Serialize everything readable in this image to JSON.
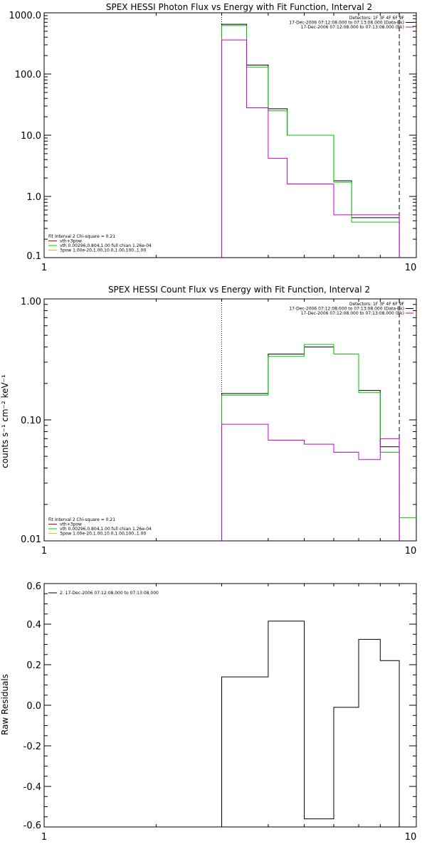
{
  "chart_data": [
    {
      "type": "line",
      "id": "photon",
      "title": "SPEX HESSI Photon Flux vs Energy with Fit Function, Interval 2",
      "xlabel": "",
      "ylabel": "",
      "xscale": "log",
      "yscale": "log",
      "xlim": [
        1,
        10
      ],
      "ylim": [
        0.1,
        1000
      ],
      "xticklabels": [
        "1",
        "10"
      ],
      "yticklabels": [
        "0.1",
        "1.0",
        "10.0",
        "100.0",
        "1000.0"
      ],
      "vlines": [
        {
          "x": 3.0,
          "style": "dotted"
        },
        {
          "x": 9.0,
          "style": "dashed"
        }
      ],
      "edges": [
        3.0,
        3.5,
        4.0,
        4.5,
        5.0,
        6.0,
        6.7,
        7.5,
        8.0,
        9.0
      ],
      "series": [
        {
          "color": "#000000",
          "values": [
            650,
            140,
            27,
            10,
            10,
            1.8,
            0.45,
            0.45,
            0.45
          ]
        },
        {
          "color": "#00cc00",
          "values": [
            620,
            130,
            25,
            10,
            10,
            1.7,
            0.38,
            0.38,
            0.38
          ]
        },
        {
          "color": "#cc00cc",
          "values": [
            360,
            28,
            4.2,
            1.6,
            1.6,
            0.5,
            0.5,
            0.5,
            0.5
          ]
        }
      ],
      "legend_right": {
        "placement": "top-right",
        "lines": [
          {
            "text": "Detectors: 1F 3F 4F 6F 9F",
            "color": ""
          },
          {
            "text": "17-Dec-2006 07:12:08.000 to 07:13:08.000 (Data-Bk)",
            "color": "#000000"
          },
          {
            "text": "17-Dec-2006 07:12:08.000 to 07:13:08.000 (Bk)",
            "color": "#cc00cc"
          }
        ]
      },
      "legend_left": {
        "placement": "bottom-left",
        "lines": [
          {
            "text": "Fit Interval 2   Chi-square = 0.21",
            "color": ""
          },
          {
            "text": "vth+3pow",
            "color": "#cc0000"
          },
          {
            "text": "vth 0.00296,0.804,1.00  full chian 1.26e-04",
            "color": "#00cc00"
          },
          {
            "text": "3pow 1.00e-20,1.00,10.0,1.00,100.,1.00",
            "color": "#cccc00"
          }
        ]
      }
    },
    {
      "type": "line",
      "id": "count",
      "title": "SPEX HESSI Count Flux vs Energy with Fit Function, Interval 2",
      "xlabel": "",
      "ylabel": "counts s⁻¹ cm⁻² keV⁻¹",
      "xscale": "log",
      "yscale": "log",
      "xlim": [
        1,
        10
      ],
      "ylim": [
        0.01,
        1.0
      ],
      "xticklabels": [
        "1",
        "10"
      ],
      "yticklabels": [
        "0.01",
        "0.10",
        "1.00"
      ],
      "vlines": [
        {
          "x": 3.0,
          "style": "dotted"
        },
        {
          "x": 9.0,
          "style": "dashed"
        }
      ],
      "edges": [
        3.0,
        4.0,
        5.0,
        6.0,
        7.0,
        8.0,
        9.0
      ],
      "series": [
        {
          "color": "#000000",
          "values": [
            0.165,
            0.35,
            0.4,
            0.35,
            0.175,
            0.06
          ]
        },
        {
          "color": "#00cc00",
          "values": [
            0.16,
            0.335,
            0.42,
            0.35,
            0.168,
            0.054
          ]
        },
        {
          "color": "#cc00cc",
          "values": [
            0.092,
            0.068,
            0.063,
            0.054,
            0.047,
            0.07
          ]
        }
      ],
      "tail": {
        "color": "#00cc00",
        "x": [
          9.0,
          10.0
        ],
        "value": 0.0155
      },
      "legend_right": {
        "placement": "top-right",
        "lines": [
          {
            "text": "Detectors: 1F 3F 4F 6F 9F",
            "color": ""
          },
          {
            "text": "17-Dec-2006 07:12:08.000 to 07:13:08.000 (Data-Bk)",
            "color": "#000000"
          },
          {
            "text": "17-Dec-2006 07:12:08.000 to 07:13:08.000 (Bk)",
            "color": "#cc00cc"
          }
        ]
      },
      "legend_left": {
        "placement": "bottom-left",
        "lines": [
          {
            "text": "Fit Interval 2   Chi-square = 0.21",
            "color": ""
          },
          {
            "text": "vth+3pow",
            "color": "#cc0000"
          },
          {
            "text": "vth 0.00296,0.804,1.00  full chian 1.26e-04",
            "color": "#00cc00"
          },
          {
            "text": "3pow 1.00e-20,1.00,10.0,1.00,100.,1.00",
            "color": "#cccc00"
          }
        ]
      }
    },
    {
      "type": "line",
      "id": "resid",
      "title": "",
      "xlabel": "",
      "ylabel": "Raw Residuals",
      "xscale": "log",
      "yscale": "linear",
      "xlim": [
        1,
        10
      ],
      "ylim": [
        -0.6,
        0.6
      ],
      "xticklabels": [
        "1",
        "10"
      ],
      "yticks": [
        -0.6,
        -0.4,
        -0.2,
        0.0,
        0.2,
        0.4,
        0.6
      ],
      "yticklabels": [
        "-0.6",
        "-0.4",
        "-0.2",
        "0.0",
        "0.2",
        "0.4",
        "0.6"
      ],
      "edges": [
        3.0,
        3.5,
        4.0,
        5.0,
        6.0,
        7.0,
        8.0,
        9.0
      ],
      "series": [
        {
          "color": "#000000",
          "values": [
            0.14,
            0.14,
            0.415,
            -0.56,
            -0.01,
            0.325,
            0.22
          ]
        }
      ],
      "legend_left": {
        "placement": "top-left",
        "lines": [
          {
            "text": "2. 17-Dec-2006 07:12:08.000 to 07:13:08.000",
            "color": "#000000"
          }
        ]
      }
    }
  ]
}
